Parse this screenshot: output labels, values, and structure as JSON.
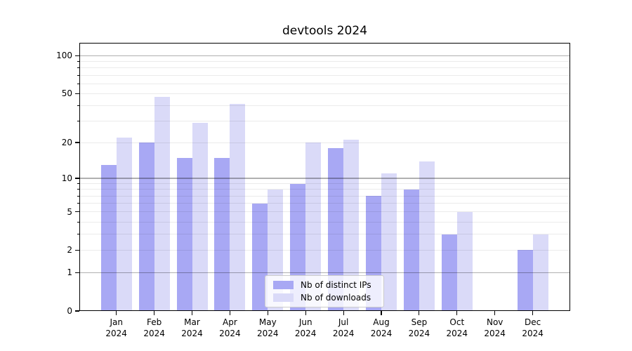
{
  "chart_data": {
    "type": "bar",
    "title": "devtools 2024",
    "categories": [
      "Jan 2024",
      "Feb 2024",
      "Mar 2024",
      "Apr 2024",
      "May 2024",
      "Jun 2024",
      "Jul 2024",
      "Aug 2024",
      "Sep 2024",
      "Oct 2024",
      "Nov 2024",
      "Dec 2024"
    ],
    "series": [
      {
        "name": "Nb of distinct IPs",
        "color": "#a8a8f4",
        "values": [
          13,
          20,
          15,
          15,
          6,
          9,
          18,
          7,
          8,
          3,
          0,
          2
        ]
      },
      {
        "name": "Nb of downloads",
        "color": "#dadaf8",
        "values": [
          22,
          47,
          29,
          41,
          8,
          20,
          21,
          11,
          14,
          5,
          0,
          3
        ]
      }
    ],
    "xlabel": "",
    "ylabel": "",
    "yscale": "log1p",
    "ylim": [
      0,
      126
    ],
    "y_ticks_labeled": [
      0,
      1,
      2,
      5,
      10,
      20,
      50,
      100
    ],
    "y_gridlines_major": [
      1,
      10,
      100
    ],
    "y_gridlines_minor": [
      2,
      3,
      4,
      5,
      6,
      7,
      8,
      9,
      20,
      30,
      40,
      50,
      60,
      70,
      80,
      90
    ],
    "grid": true,
    "legend": {
      "location": "lower center",
      "entries": [
        "Nb of distinct IPs",
        "Nb of downloads"
      ]
    }
  },
  "colors": {
    "major_gridline": "rgba(0,0,0,0.31)",
    "minor_gridline": "rgba(0,0,0,0.08)",
    "background": "#ffffff"
  }
}
